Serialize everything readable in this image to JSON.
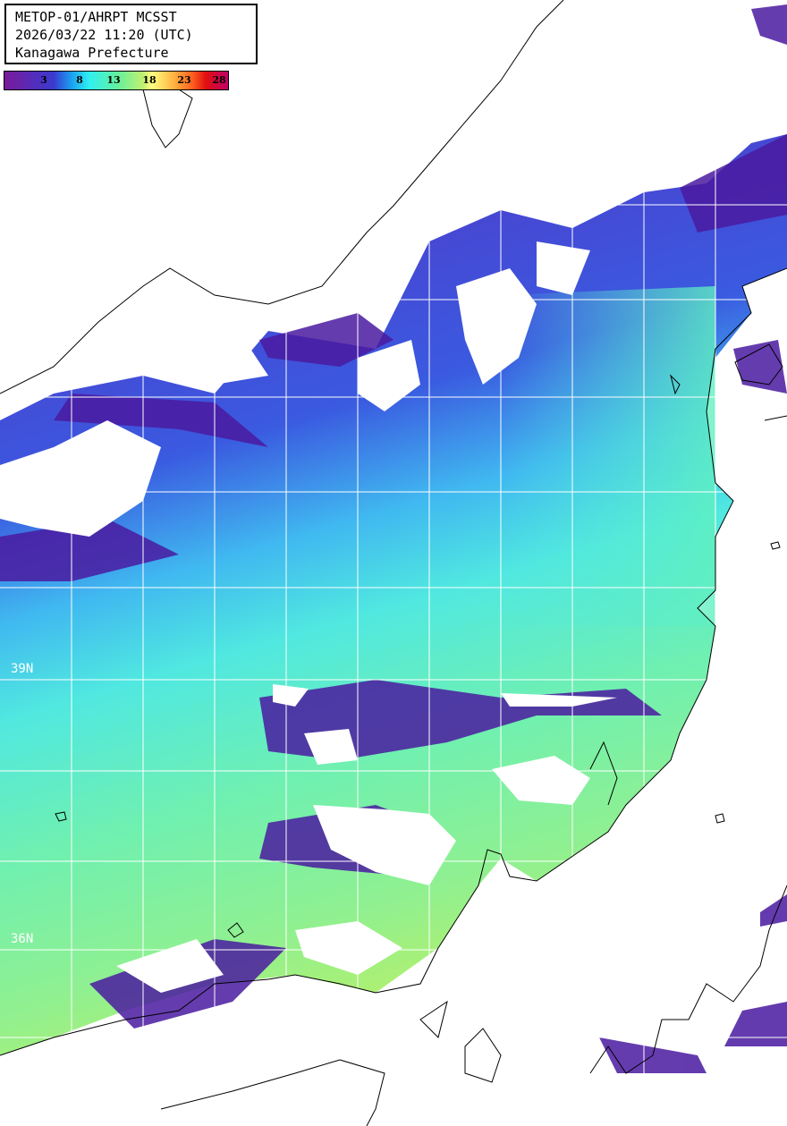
{
  "header": {
    "line1": "METOP-01/AHRPT MCSST",
    "line2": "2026/03/22 11:20 (UTC)",
    "line3": "Kanagawa Prefecture"
  },
  "colorbar": {
    "unit_range_note": "",
    "ticks": [
      "3",
      "8",
      "13",
      "18",
      "23",
      "28"
    ],
    "colors": [
      "#7a1a9a",
      "#3a3ad0",
      "#30f0f0",
      "#60f0a0",
      "#ffff80",
      "#ff6020",
      "#c0006a"
    ]
  },
  "map": {
    "lat_labels": [
      "39N",
      "36N"
    ],
    "land_color": "#ffffff",
    "cloud_color": "#ffffff",
    "coastline_color": "#000000",
    "grid_color": "#ffffff"
  }
}
